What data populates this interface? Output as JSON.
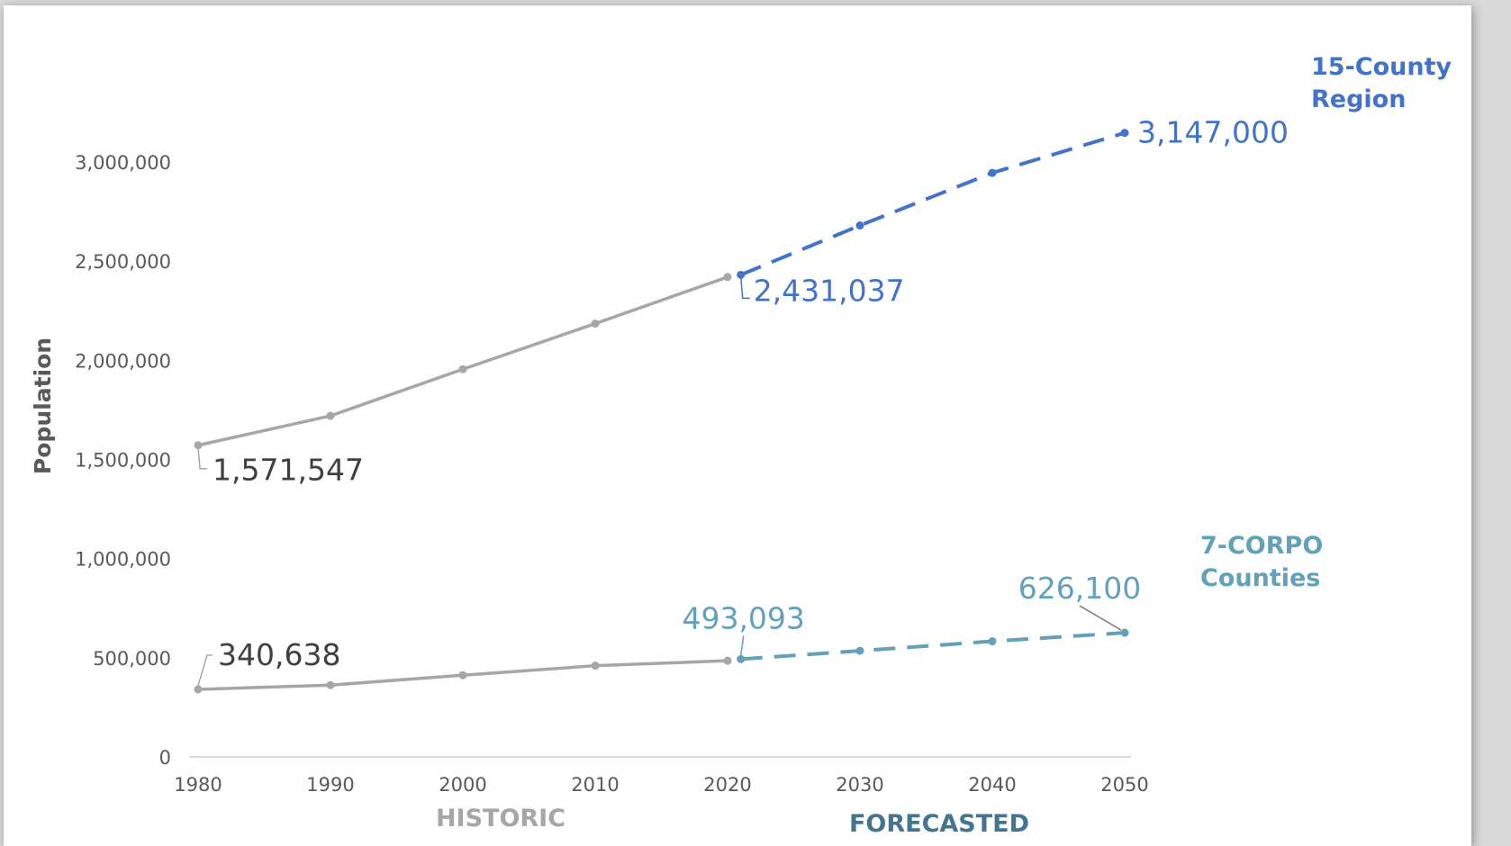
{
  "chart_data": {
    "type": "line",
    "ylabel": "Population",
    "xlabel": "",
    "ylim": [
      0,
      3000000
    ],
    "y_ticks": [
      0,
      500000,
      1000000,
      1500000,
      2000000,
      2500000,
      3000000
    ],
    "y_tick_labels": [
      "0",
      "500,000",
      "1,000,000",
      "1,500,000",
      "2,000,000",
      "2,500,000",
      "3,000,000"
    ],
    "x_ticks": [
      1980,
      1990,
      2000,
      2010,
      2020,
      2030,
      2040,
      2050
    ],
    "x_tick_labels": [
      "1980",
      "1990",
      "2000",
      "2010",
      "2020",
      "2030",
      "2040",
      "2050"
    ],
    "grid": false,
    "sections": [
      {
        "label": "HISTORIC",
        "color": "#a6a6a6"
      },
      {
        "label": "FORECASTED",
        "color": "#44748f"
      }
    ],
    "series": [
      {
        "name": "15-County Region",
        "label_color": "#4472c4",
        "historic": {
          "x": [
            1980,
            1990,
            2000,
            2010,
            2020
          ],
          "y": [
            1571547,
            1720000,
            1955000,
            2185000,
            2420000
          ],
          "color": "#a6a6a6"
        },
        "forecast": {
          "x": [
            2021,
            2030,
            2040,
            2050
          ],
          "y": [
            2431037,
            2680000,
            2945000,
            3147000
          ],
          "color": "#4472c4"
        },
        "data_labels": [
          {
            "text": "1,571,547",
            "x": 1980,
            "y": 1571547,
            "color": "#404040"
          },
          {
            "text": "2,431,037",
            "x": 2021,
            "y": 2431037,
            "color": "#4472c4"
          },
          {
            "text": "3,147,000",
            "x": 2050,
            "y": 3147000,
            "color": "#4472c4"
          }
        ]
      },
      {
        "name": "7-CORPO Counties",
        "label_color": "#64a0b8",
        "historic": {
          "x": [
            1980,
            1990,
            2000,
            2010,
            2020
          ],
          "y": [
            340638,
            362000,
            412000,
            460000,
            485000
          ],
          "color": "#a6a6a6"
        },
        "forecast": {
          "x": [
            2021,
            2030,
            2040,
            2050
          ],
          "y": [
            493093,
            535000,
            583000,
            626100
          ],
          "color": "#64a0b8"
        },
        "data_labels": [
          {
            "text": "340,638",
            "x": 1980,
            "y": 340638,
            "color": "#404040"
          },
          {
            "text": "493,093",
            "x": 2021,
            "y": 493093,
            "color": "#64a0b8"
          },
          {
            "text": "626,100",
            "x": 2050,
            "y": 626100,
            "color": "#64a0b8"
          }
        ]
      }
    ]
  },
  "series_names": {
    "region_line1": "15-County",
    "region_line2": "Region",
    "corpo_line1": "7-CORPO",
    "corpo_line2": "Counties"
  }
}
